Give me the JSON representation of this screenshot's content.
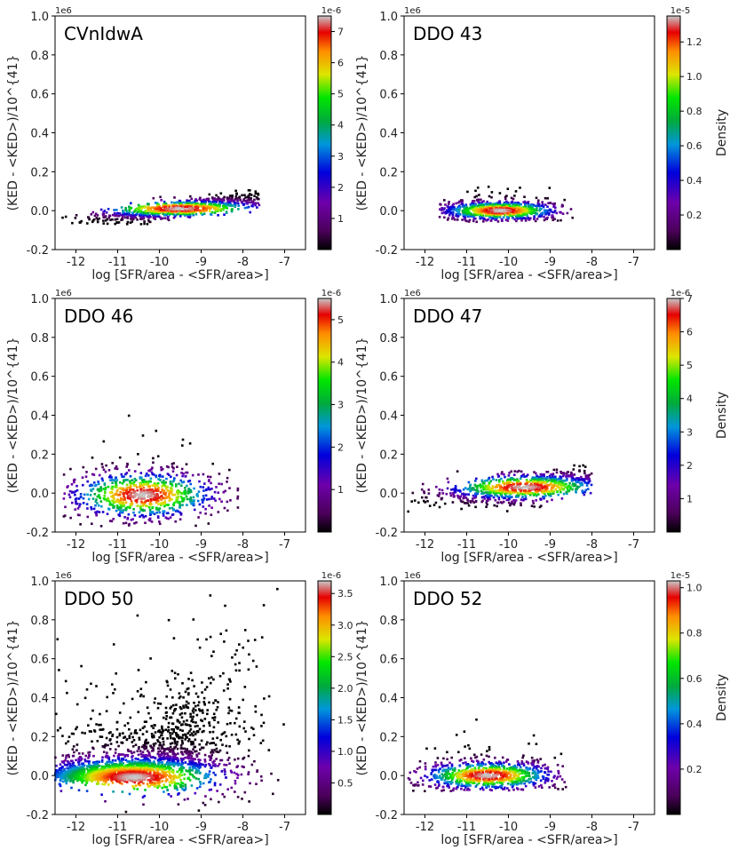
{
  "chart_data": [
    {
      "type": "scatter",
      "title": "CVnIdwA",
      "xlabel": "log [SFR/area - <SFR/area>]",
      "ylabel": "(KED - <KED>)/10^{41}",
      "y_offset_label": "1e6",
      "xlim": [
        -12.5,
        -6.5
      ],
      "ylim": [
        -0.2,
        1.0
      ],
      "xticks": [
        -12,
        -11,
        -10,
        -9,
        -8,
        -7
      ],
      "yticks": [
        -0.2,
        0.0,
        0.2,
        0.4,
        0.6,
        0.8,
        1.0
      ],
      "colorbar": {
        "label": "",
        "exponent_label": "1e-6",
        "ticks": [
          1,
          2,
          3,
          4,
          5,
          6,
          7
        ],
        "max": 7.5
      },
      "density_peak": {
        "x": -9.5,
        "y": 0.01
      },
      "x_range": [
        -12.4,
        -7.6
      ],
      "y_range": [
        -0.07,
        0.17
      ],
      "trend": "rising"
    },
    {
      "type": "scatter",
      "title": "DDO 43",
      "xlabel": "log [SFR/area - <SFR/area>]",
      "ylabel": "(KED - <KED>)/10^{41}",
      "y_offset_label": "1e6",
      "xlim": [
        -12.5,
        -6.5
      ],
      "ylim": [
        -0.2,
        1.0
      ],
      "xticks": [
        -12,
        -11,
        -10,
        -9,
        -8,
        -7
      ],
      "yticks": [
        -0.2,
        0.0,
        0.2,
        0.4,
        0.6,
        0.8,
        1.0
      ],
      "colorbar": {
        "label": "Density",
        "exponent_label": "1e-5",
        "ticks": [
          0.2,
          0.4,
          0.6,
          0.8,
          1.0,
          1.2
        ],
        "max": 1.35
      },
      "density_peak": {
        "x": -10.2,
        "y": 0.0
      },
      "x_range": [
        -11.7,
        -8.4
      ],
      "y_range": [
        -0.06,
        0.2
      ],
      "trend": "flat"
    },
    {
      "type": "scatter",
      "title": "DDO 46",
      "xlabel": "log [SFR/area - <SFR/area>]",
      "ylabel": "(KED - <KED>)/10^{41}",
      "y_offset_label": "1e6",
      "xlim": [
        -12.5,
        -6.5
      ],
      "ylim": [
        -0.2,
        1.0
      ],
      "xticks": [
        -12,
        -11,
        -10,
        -9,
        -8,
        -7
      ],
      "yticks": [
        -0.2,
        0.0,
        0.2,
        0.4,
        0.6,
        0.8,
        1.0
      ],
      "colorbar": {
        "label": "",
        "exponent_label": "1e-6",
        "ticks": [
          1,
          2,
          3,
          4,
          5
        ],
        "max": 5.5
      },
      "density_peak": {
        "x": -10.4,
        "y": -0.01
      },
      "x_range": [
        -12.3,
        -8.1
      ],
      "y_range": [
        -0.17,
        0.5
      ],
      "trend": "flat"
    },
    {
      "type": "scatter",
      "title": "DDO 47",
      "xlabel": "log [SFR/area - <SFR/area>]",
      "ylabel": "(KED - <KED>)/10^{41}",
      "y_offset_label": "1e6",
      "xlim": [
        -12.5,
        -6.5
      ],
      "ylim": [
        -0.2,
        1.0
      ],
      "xticks": [
        -12,
        -11,
        -10,
        -9,
        -8,
        -7
      ],
      "yticks": [
        -0.2,
        0.0,
        0.2,
        0.4,
        0.6,
        0.8,
        1.0
      ],
      "colorbar": {
        "label": "Density",
        "exponent_label": "1e-6",
        "ticks": [
          1,
          2,
          3,
          4,
          5,
          6,
          7
        ],
        "max": 7.0
      },
      "density_peak": {
        "x": -9.6,
        "y": 0.03
      },
      "x_range": [
        -12.5,
        -8.0
      ],
      "y_range": [
        -0.1,
        0.26
      ],
      "trend": "rising"
    },
    {
      "type": "scatter",
      "title": "DDO 50",
      "xlabel": "log [SFR/area - <SFR/area>]",
      "ylabel": "(KED - <KED>)/10^{41}",
      "y_offset_label": "1e6",
      "xlim": [
        -12.5,
        -6.5
      ],
      "ylim": [
        -0.2,
        1.0
      ],
      "xticks": [
        -12,
        -11,
        -10,
        -9,
        -8,
        -7
      ],
      "yticks": [
        -0.2,
        0.0,
        0.2,
        0.4,
        0.6,
        0.8,
        1.0
      ],
      "colorbar": {
        "label": "",
        "exponent_label": "1e-6",
        "ticks": [
          0.5,
          1.0,
          1.5,
          2.0,
          2.5,
          3.0,
          3.5
        ],
        "max": 3.7
      },
      "density_peak": {
        "x": -10.6,
        "y": -0.01
      },
      "x_range": [
        -12.5,
        -7.0
      ],
      "y_range": [
        -0.2,
        1.0
      ],
      "trend": "fan"
    },
    {
      "type": "scatter",
      "title": "DDO 52",
      "xlabel": "log [SFR/area - <SFR/area>]",
      "ylabel": "(KED - <KED>)/10^{41}",
      "y_offset_label": "1e6",
      "xlim": [
        -12.5,
        -6.5
      ],
      "ylim": [
        -0.2,
        1.0
      ],
      "xticks": [
        -12,
        -11,
        -10,
        -9,
        -8,
        -7
      ],
      "yticks": [
        -0.2,
        0.0,
        0.2,
        0.4,
        0.6,
        0.8,
        1.0
      ],
      "colorbar": {
        "label": "Density",
        "exponent_label": "1e-5",
        "ticks": [
          0.2,
          0.4,
          0.6,
          0.8,
          1.0
        ],
        "max": 1.03
      },
      "density_peak": {
        "x": -10.5,
        "y": 0.0
      },
      "x_range": [
        -12.4,
        -8.6
      ],
      "y_range": [
        -0.08,
        0.32
      ],
      "trend": "flat"
    }
  ]
}
